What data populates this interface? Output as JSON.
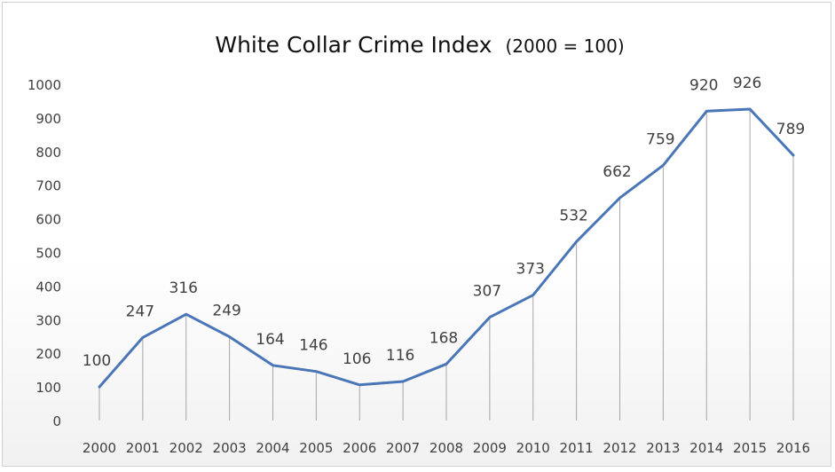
{
  "chart_data": {
    "type": "line",
    "title": "White Collar Crime Index",
    "subtitle": "(2000 = 100)",
    "xlabel": "",
    "ylabel": "",
    "categories": [
      "2000",
      "2001",
      "2002",
      "2003",
      "2004",
      "2005",
      "2006",
      "2007",
      "2008",
      "2009",
      "2010",
      "2011",
      "2012",
      "2013",
      "2014",
      "2015",
      "2016"
    ],
    "values": [
      100,
      247,
      316,
      249,
      164,
      146,
      106,
      116,
      168,
      307,
      373,
      532,
      662,
      759,
      920,
      926,
      789
    ],
    "ylim": [
      0,
      1000
    ],
    "yticks": [
      "0",
      "100",
      "200",
      "300",
      "400",
      "500",
      "600",
      "700",
      "800",
      "900",
      "1000"
    ],
    "grid": false,
    "drop_lines": true,
    "data_labels": true,
    "legend": "none",
    "colors": {
      "line": "#4a76b8",
      "drop_line": "#a6a6a6",
      "text": "#404040"
    }
  }
}
